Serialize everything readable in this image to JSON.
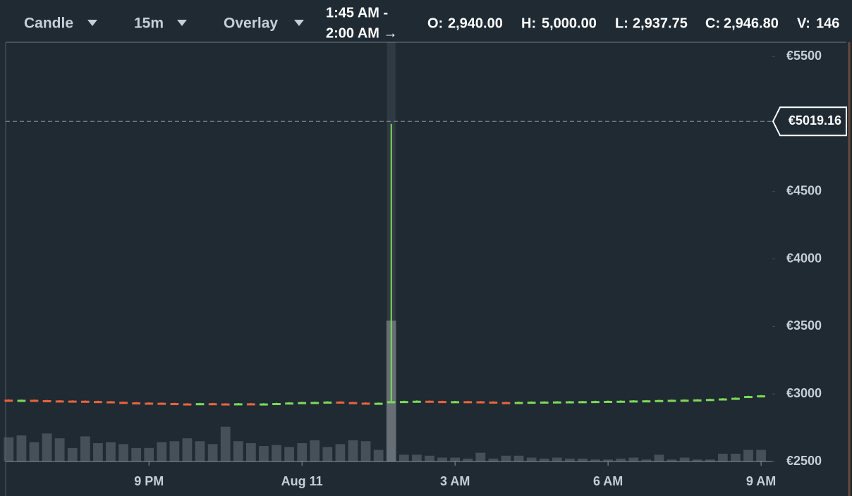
{
  "header": {
    "chart_type": "Candle",
    "interval": "15m",
    "overlay": "Overlay",
    "range": [
      "1:45 AM -",
      "2:00 AM →"
    ],
    "stats": [
      {
        "key": "O:",
        "text": "2,940.00"
      },
      {
        "key": "H:",
        "text": "5,000.00"
      },
      {
        "key": "L:",
        "text": "2,937.75"
      },
      {
        "key": "C:",
        "text": "2,946.80"
      },
      {
        "key": "V:",
        "text": "146"
      }
    ]
  },
  "chart_data": {
    "type": "candlestick",
    "x": [
      18.25,
      18.5,
      18.75,
      19,
      19.25,
      19.5,
      19.75,
      20,
      20.25,
      20.5,
      20.75,
      21,
      21.25,
      21.5,
      21.75,
      22,
      22.25,
      22.5,
      22.75,
      23,
      23.25,
      23.5,
      23.75,
      24,
      24.25,
      24.5,
      24.75,
      25,
      25.25,
      25.5,
      25.75,
      26,
      26.25,
      26.5,
      26.75,
      27,
      27.25,
      27.5,
      27.75,
      28,
      28.25,
      28.5,
      28.75,
      29,
      29.25,
      29.5,
      29.75,
      30,
      30.25,
      30.5,
      30.75,
      31,
      31.25,
      31.5,
      31.75,
      32,
      32.25,
      32.5,
      32.75,
      33
    ],
    "open": [
      2958,
      2955,
      2957,
      2954,
      2952,
      2951,
      2950,
      2948,
      2946,
      2942,
      2938,
      2936,
      2935,
      2933,
      2930,
      2928,
      2932,
      2930,
      2926,
      2931,
      2928,
      2930,
      2933,
      2937,
      2940,
      2941,
      2944,
      2940,
      2936,
      2932,
      2940,
      2946.8,
      2948,
      2950,
      2948,
      2946,
      2947,
      2946,
      2944,
      2940,
      2938,
      2941,
      2943,
      2944,
      2945,
      2946,
      2947,
      2948,
      2949,
      2950,
      2952,
      2953,
      2955,
      2957,
      2958,
      2960,
      2963,
      2967,
      2972,
      2985
    ],
    "high": [
      2960,
      2959,
      2959,
      2956,
      2954,
      2953,
      2952,
      2950,
      2948,
      2944,
      2940,
      2938,
      2937,
      2935,
      2932,
      2934,
      2934,
      2932,
      2933,
      2933,
      2932,
      2935,
      2939,
      2942,
      2943,
      2946,
      2946,
      2942,
      2938,
      2937,
      5000,
      2950,
      2952,
      2952,
      2950,
      2949,
      2949,
      2948,
      2946,
      2942,
      2943,
      2945,
      2946,
      2947,
      2948,
      2949,
      2950,
      2951,
      2952,
      2954,
      2955,
      2957,
      2959,
      2960,
      2962,
      2965,
      2969,
      2974,
      2987,
      2992
    ],
    "low": [
      2953,
      2953,
      2952,
      2950,
      2949,
      2948,
      2946,
      2944,
      2940,
      2936,
      2934,
      2933,
      2931,
      2928,
      2926,
      2926,
      2928,
      2924,
      2924,
      2926,
      2926,
      2928,
      2931,
      2935,
      2938,
      2939,
      2938,
      2934,
      2930,
      2930,
      2937.75,
      2945,
      2946,
      2946,
      2944,
      2944,
      2944,
      2942,
      2938,
      2936,
      2936,
      2939,
      2941,
      2942,
      2943,
      2944,
      2945,
      2946,
      2947,
      2948,
      2950,
      2951,
      2953,
      2955,
      2956,
      2958,
      2961,
      2965,
      2970,
      2983
    ],
    "close": [
      2955,
      2957,
      2954,
      2952,
      2951,
      2950,
      2948,
      2946,
      2942,
      2938,
      2936,
      2935,
      2933,
      2930,
      2928,
      2932,
      2930,
      2926,
      2931,
      2928,
      2930,
      2933,
      2937,
      2940,
      2941,
      2944,
      2940,
      2936,
      2932,
      2935,
      2946.8,
      2948,
      2950,
      2948,
      2946,
      2947,
      2946,
      2944,
      2940,
      2938,
      2941,
      2943,
      2944,
      2945,
      2946,
      2947,
      2948,
      2949,
      2950,
      2952,
      2953,
      2955,
      2957,
      2958,
      2960,
      2963,
      2967,
      2972,
      2985,
      2990
    ],
    "volume": [
      25,
      27,
      20,
      29,
      24,
      14,
      26,
      19,
      20,
      18,
      14,
      14,
      20,
      21,
      24,
      21,
      18,
      36,
      21,
      19,
      16,
      17,
      15,
      19,
      22,
      15,
      18,
      22,
      21,
      12,
      146,
      7,
      7,
      6,
      4,
      4,
      3,
      9,
      3,
      6,
      6,
      4,
      3,
      4,
      3,
      3,
      2,
      2,
      3,
      4,
      2,
      7,
      2,
      4,
      2,
      2,
      8,
      8,
      12,
      12
    ],
    "up_color": "#7ed957",
    "down_color": "#e8643c",
    "volume_color": "#56616a",
    "selected": 30,
    "xlim": [
      18.19,
      33.22
    ],
    "xticks": [
      {
        "value": 21,
        "label": "9 PM"
      },
      {
        "value": 24,
        "label": "Aug 11"
      },
      {
        "value": 27,
        "label": "3 AM"
      },
      {
        "value": 30,
        "label": "6 AM"
      },
      {
        "value": 33,
        "label": "9 AM"
      }
    ],
    "ylim": [
      2500,
      5605
    ],
    "yticks": [
      {
        "value": 5500,
        "label": "€5500"
      },
      {
        "value": 4500,
        "label": "€4500"
      },
      {
        "value": 4000,
        "label": "€4000"
      },
      {
        "value": 3500,
        "label": "€3500"
      },
      {
        "value": 3000,
        "label": "€3000"
      },
      {
        "value": 2500,
        "label": "€2500"
      }
    ],
    "cursor": {
      "value": 5019.16,
      "label": "€5019.16"
    }
  }
}
